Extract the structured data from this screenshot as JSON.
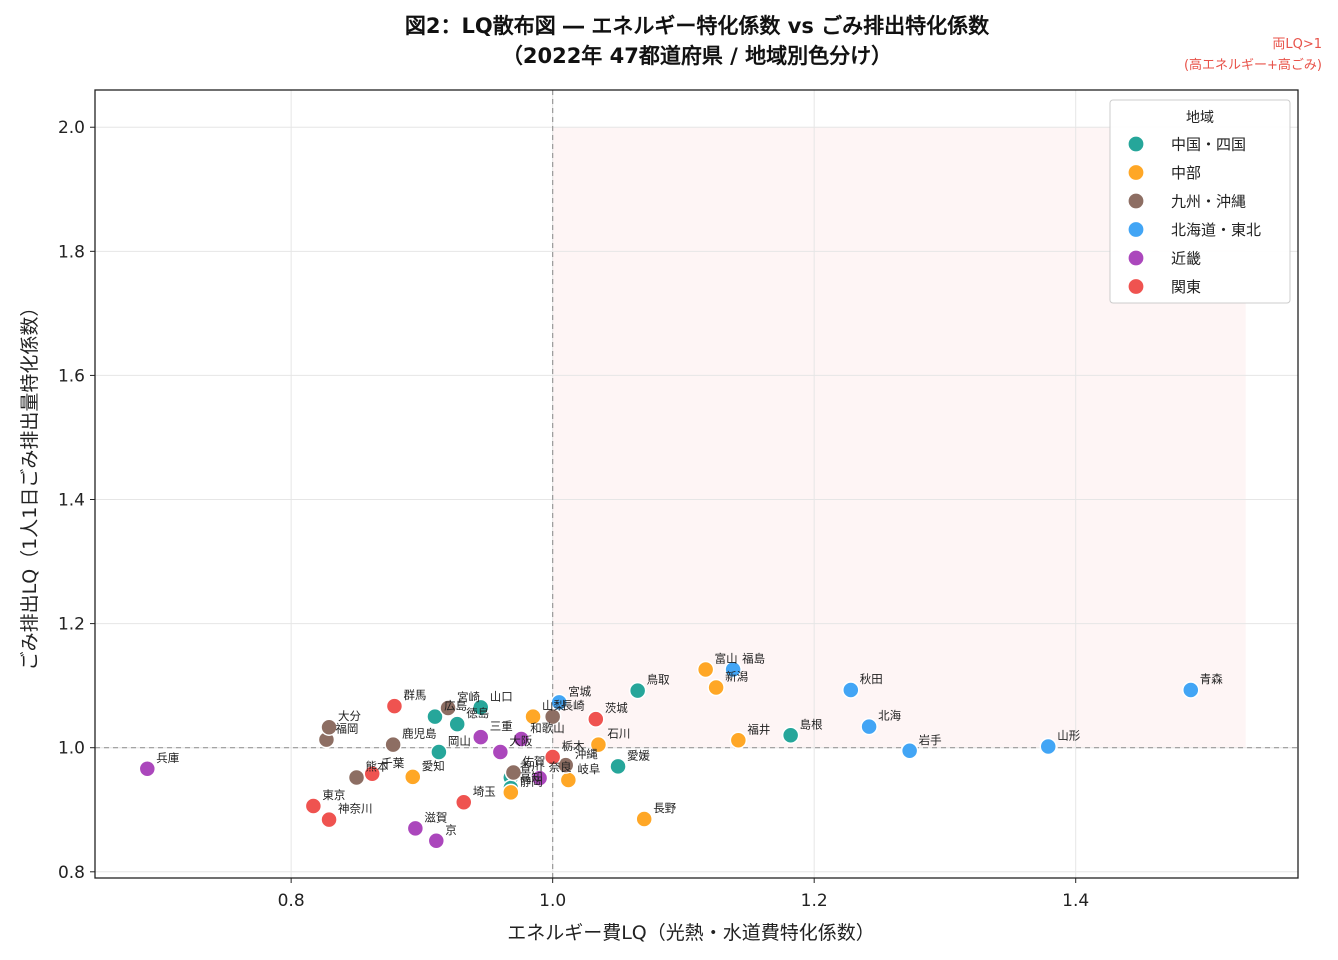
{
  "chart_data": {
    "type": "scatter",
    "title": "図2：LQ散布図 ― エネルギー特化係数 vs ごみ排出特化係数",
    "subtitle": "（2022年 47都道府県 / 地域別色分け）",
    "xlabel": "エネルギー費LQ（光熱・水道費特化係数）",
    "ylabel": "ごみ排出LQ（1人1日ごみ排出量特化係数）",
    "xlim": [
      0.65,
      1.57
    ],
    "ylim": [
      0.79,
      2.06
    ],
    "xticks": [
      "0.8",
      "1.0",
      "1.2",
      "1.4"
    ],
    "yticks": [
      "0.8",
      "1.0",
      "1.2",
      "1.4",
      "1.6",
      "1.8",
      "2.0"
    ],
    "grid": true,
    "reference_lines": {
      "x": 1.0,
      "y": 1.0
    },
    "highlight_region": {
      "x": [
        1.0,
        1.53
      ],
      "y": [
        1.0,
        2.0
      ],
      "note_line1": "両LQ>1",
      "note_line2": "(高エネルギー+高ごみ)"
    },
    "legend": {
      "title": "地域",
      "position": "top-right"
    },
    "series": [
      {
        "name": "中国・四国",
        "color": "#26a69a",
        "points": [
          {
            "label": "鳥取",
            "x": 1.065,
            "y": 1.092
          },
          {
            "label": "島根",
            "x": 1.182,
            "y": 1.02
          },
          {
            "label": "岡山",
            "x": 0.913,
            "y": 0.993
          },
          {
            "label": "広島",
            "x": 0.91,
            "y": 1.05
          },
          {
            "label": "山口",
            "x": 0.945,
            "y": 1.065
          },
          {
            "label": "徳島",
            "x": 0.927,
            "y": 1.038
          },
          {
            "label": "香川",
            "x": 0.968,
            "y": 0.952
          },
          {
            "label": "愛媛",
            "x": 1.05,
            "y": 0.97
          },
          {
            "label": "高知",
            "x": 0.968,
            "y": 0.935
          }
        ]
      },
      {
        "name": "中部",
        "color": "#ffa726",
        "points": [
          {
            "label": "新潟",
            "x": 1.125,
            "y": 1.097
          },
          {
            "label": "富山",
            "x": 1.117,
            "y": 1.126
          },
          {
            "label": "石川",
            "x": 1.035,
            "y": 1.005
          },
          {
            "label": "福井",
            "x": 1.142,
            "y": 1.012
          },
          {
            "label": "山梨",
            "x": 0.985,
            "y": 1.05
          },
          {
            "label": "長野",
            "x": 1.07,
            "y": 0.885
          },
          {
            "label": "岐阜",
            "x": 1.012,
            "y": 0.948
          },
          {
            "label": "静岡",
            "x": 0.968,
            "y": 0.928
          },
          {
            "label": "愛知",
            "x": 0.893,
            "y": 0.953
          }
        ]
      },
      {
        "name": "九州・沖縄",
        "color": "#8d6e63",
        "points": [
          {
            "label": "福岡",
            "x": 0.827,
            "y": 1.013
          },
          {
            "label": "佐賀",
            "x": 0.97,
            "y": 0.96
          },
          {
            "label": "長崎",
            "x": 1.0,
            "y": 1.05
          },
          {
            "label": "熊本",
            "x": 0.85,
            "y": 0.952
          },
          {
            "label": "大分",
            "x": 0.829,
            "y": 1.033
          },
          {
            "label": "宮崎",
            "x": 0.92,
            "y": 1.064
          },
          {
            "label": "鹿児島",
            "x": 0.878,
            "y": 1.005
          },
          {
            "label": "沖縄",
            "x": 1.01,
            "y": 0.972
          }
        ]
      },
      {
        "name": "北海道・東北",
        "color": "#42a5f5",
        "points": [
          {
            "label": "北海",
            "x": 1.242,
            "y": 1.034
          },
          {
            "label": "青森",
            "x": 1.488,
            "y": 1.093
          },
          {
            "label": "岩手",
            "x": 1.273,
            "y": 0.995
          },
          {
            "label": "宮城",
            "x": 1.005,
            "y": 1.073
          },
          {
            "label": "秋田",
            "x": 1.228,
            "y": 1.093
          },
          {
            "label": "山形",
            "x": 1.379,
            "y": 1.002
          },
          {
            "label": "福島",
            "x": 1.138,
            "y": 1.126
          }
        ]
      },
      {
        "name": "近畿",
        "color": "#ab47bc",
        "points": [
          {
            "label": "三重",
            "x": 0.945,
            "y": 1.017
          },
          {
            "label": "滋賀",
            "x": 0.895,
            "y": 0.87
          },
          {
            "label": "京",
            "x": 0.911,
            "y": 0.85
          },
          {
            "label": "大阪",
            "x": 0.96,
            "y": 0.993
          },
          {
            "label": "兵庫",
            "x": 0.69,
            "y": 0.966
          },
          {
            "label": "奈良",
            "x": 0.99,
            "y": 0.951
          },
          {
            "label": "和歌山",
            "x": 0.976,
            "y": 1.014
          }
        ]
      },
      {
        "name": "関東",
        "color": "#ef5350",
        "points": [
          {
            "label": "茨城",
            "x": 1.033,
            "y": 1.046
          },
          {
            "label": "栃木",
            "x": 1.0,
            "y": 0.985
          },
          {
            "label": "群馬",
            "x": 0.879,
            "y": 1.067
          },
          {
            "label": "埼玉",
            "x": 0.932,
            "y": 0.912
          },
          {
            "label": "千葉",
            "x": 0.862,
            "y": 0.958
          },
          {
            "label": "東京",
            "x": 0.817,
            "y": 0.906
          },
          {
            "label": "神奈川",
            "x": 0.829,
            "y": 0.884
          }
        ]
      }
    ]
  }
}
